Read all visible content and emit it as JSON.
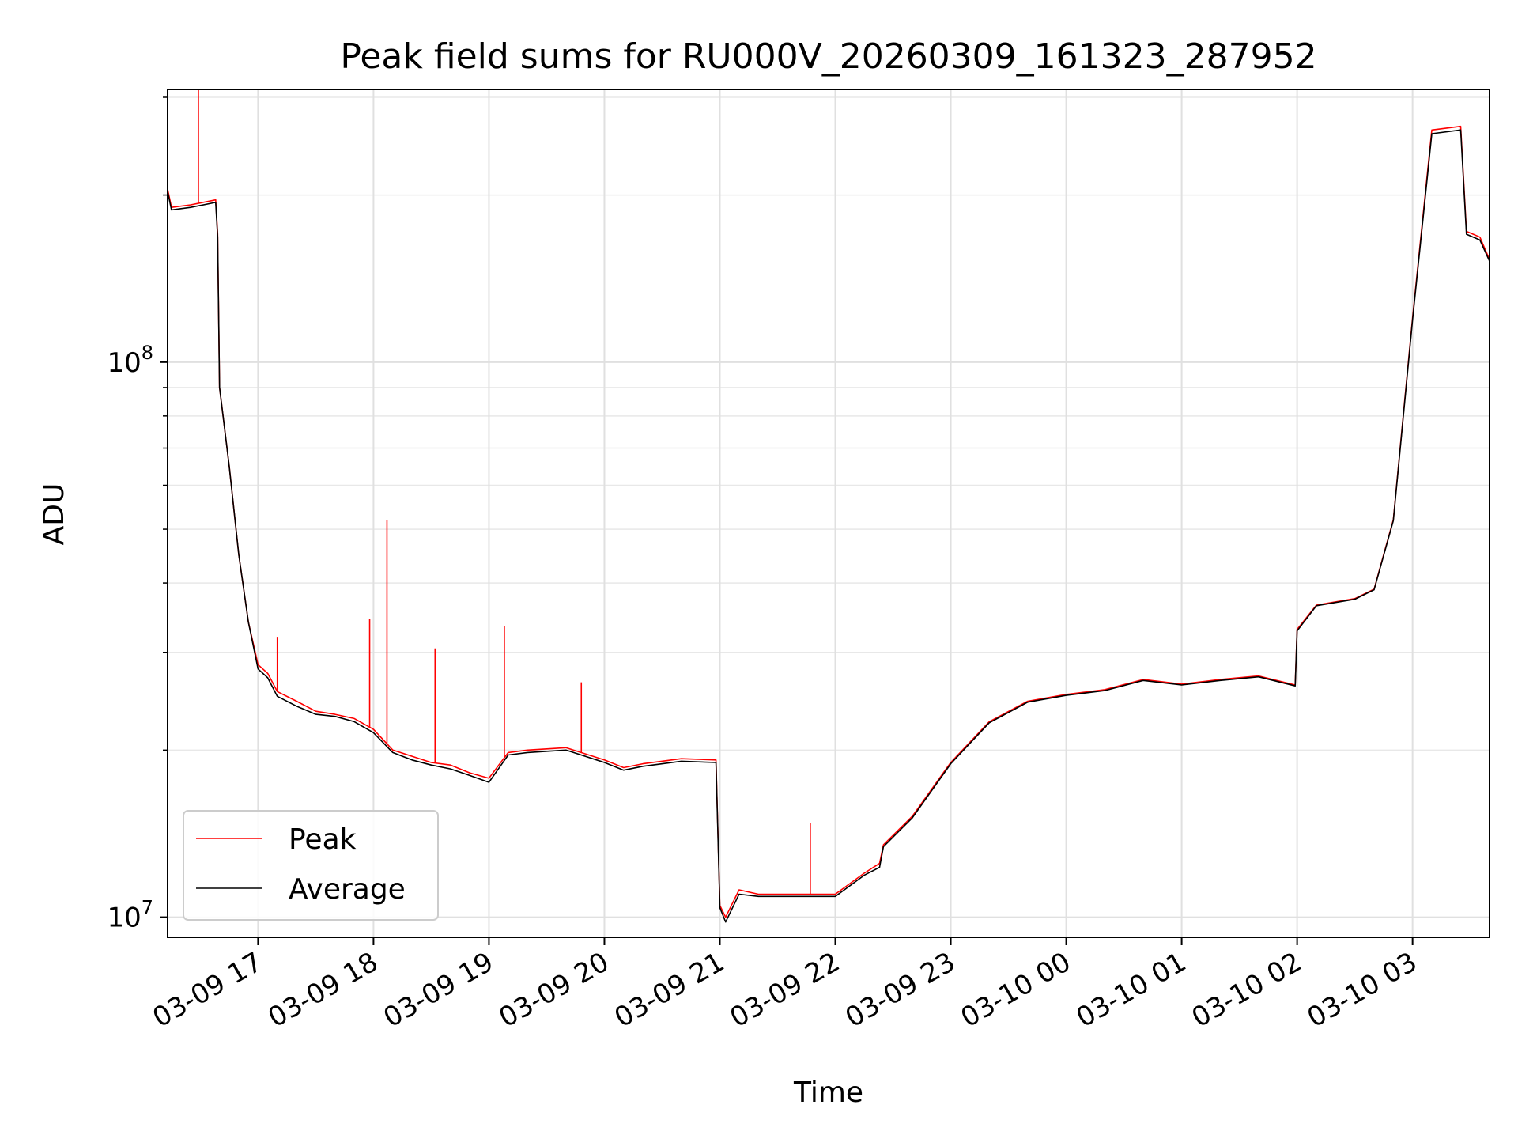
{
  "chart_data": {
    "type": "line",
    "title": "Peak field sums for RU000V_20260309_161323_287952",
    "xlabel": "Time",
    "ylabel": "ADU",
    "yscale": "log",
    "xlim": [
      "03-09 16:13",
      "03-10 03:40"
    ],
    "ylim": [
      9200000,
      310000000
    ],
    "x_ticks": [
      "03-09 17",
      "03-09 18",
      "03-09 19",
      "03-09 20",
      "03-09 21",
      "03-09 22",
      "03-09 23",
      "03-10 00",
      "03-10 01",
      "03-10 02",
      "03-10 03"
    ],
    "y_ticks": [
      {
        "value": 10000000,
        "base": "10",
        "exp": "7"
      },
      {
        "value": 100000000,
        "base": "10",
        "exp": "8"
      }
    ],
    "grid": true,
    "legend_position": "lower-left",
    "x": [
      "03-09 16:13",
      "03-09 16:15",
      "03-09 16:25",
      "03-09 16:38",
      "03-09 16:39",
      "03-09 16:40",
      "03-09 16:45",
      "03-09 16:50",
      "03-09 16:55",
      "03-09 17:00",
      "03-09 17:05",
      "03-09 17:10",
      "03-09 17:20",
      "03-09 17:30",
      "03-09 17:40",
      "03-09 17:50",
      "03-09 18:00",
      "03-09 18:10",
      "03-09 18:20",
      "03-09 18:30",
      "03-09 18:40",
      "03-09 18:50",
      "03-09 19:00",
      "03-09 19:10",
      "03-09 19:20",
      "03-09 19:40",
      "03-09 20:00",
      "03-09 20:10",
      "03-09 20:20",
      "03-09 20:40",
      "03-09 20:58",
      "03-09 21:00",
      "03-09 21:03",
      "03-09 21:10",
      "03-09 21:20",
      "03-09 21:40",
      "03-09 22:00",
      "03-09 22:15",
      "03-09 22:23",
      "03-09 22:25",
      "03-09 22:40",
      "03-09 23:00",
      "03-09 23:20",
      "03-09 23:40",
      "03-10 00:00",
      "03-10 00:20",
      "03-10 00:40",
      "03-10 01:00",
      "03-10 01:20",
      "03-10 01:40",
      "03-10 01:59",
      "03-10 02:00",
      "03-10 02:10",
      "03-10 02:30",
      "03-10 02:40",
      "03-10 02:50",
      "03-10 03:00",
      "03-10 03:10",
      "03-10 03:25",
      "03-10 03:28",
      "03-10 03:35",
      "03-10 03:40"
    ],
    "series": [
      {
        "name": "Peak",
        "color": "#ff0000",
        "values": [
          205000000,
          190000000,
          192000000,
          196000000,
          170000000,
          90000000,
          65000000,
          45000000,
          34000000,
          28500000,
          27500000,
          25500000,
          24500000,
          23500000,
          23200000,
          22800000,
          21800000,
          20000000,
          19500000,
          19000000,
          18800000,
          18200000,
          17800000,
          19800000,
          20000000,
          20200000,
          19200000,
          18600000,
          18900000,
          19300000,
          19200000,
          10500000,
          10000000,
          11200000,
          11000000,
          11000000,
          11000000,
          12000000,
          12500000,
          13500000,
          15200000,
          19000000,
          22500000,
          24500000,
          25200000,
          25700000,
          26800000,
          26300000,
          26800000,
          27200000,
          26200000,
          33000000,
          36500000,
          37500000,
          39000000,
          52000000,
          120000000,
          262000000,
          266000000,
          172000000,
          168000000,
          153000000
        ],
        "spikes": [
          {
            "x": "03-09 16:29",
            "value": 310000000
          },
          {
            "x": "03-09 17:10",
            "value": 32000000
          },
          {
            "x": "03-09 17:58",
            "value": 34500000
          },
          {
            "x": "03-09 18:07",
            "value": 52000000
          },
          {
            "x": "03-09 18:32",
            "value": 30500000
          },
          {
            "x": "03-09 19:08",
            "value": 33500000
          },
          {
            "x": "03-09 19:48",
            "value": 26500000
          },
          {
            "x": "03-09 21:47",
            "value": 14800000
          }
        ]
      },
      {
        "name": "Average",
        "color": "#000000",
        "values": [
          203000000,
          188000000,
          190000000,
          194000000,
          168000000,
          90000000,
          65000000,
          45000000,
          34000000,
          28000000,
          27000000,
          25000000,
          24000000,
          23200000,
          23000000,
          22500000,
          21500000,
          19800000,
          19200000,
          18800000,
          18500000,
          18000000,
          17500000,
          19600000,
          19800000,
          20000000,
          19000000,
          18400000,
          18700000,
          19100000,
          19000000,
          10400000,
          9800000,
          11000000,
          10900000,
          10900000,
          10900000,
          11900000,
          12300000,
          13400000,
          15100000,
          18900000,
          22400000,
          24400000,
          25100000,
          25600000,
          26700000,
          26200000,
          26700000,
          27100000,
          26100000,
          32800000,
          36400000,
          37400000,
          38900000,
          51800000,
          119000000,
          258000000,
          262000000,
          170000000,
          166000000,
          152000000
        ]
      }
    ]
  }
}
